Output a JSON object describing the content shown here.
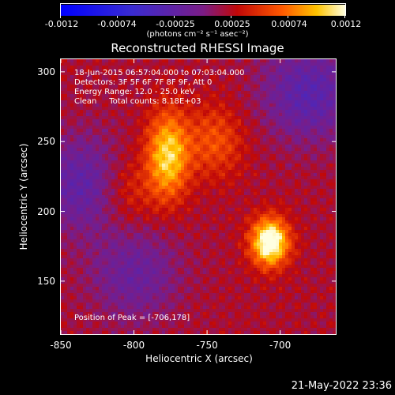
{
  "colorbar": {
    "ticks": [
      "-0.0012",
      "-0.00074",
      "-0.00025",
      "0.00025",
      "0.00074",
      "0.0012"
    ],
    "units": "(photons cm⁻² s⁻¹ asec⁻²)"
  },
  "chart_data": {
    "type": "heatmap",
    "title": "Reconstructed RHESSI Image",
    "xlabel": "Heliocentric X (arcsec)",
    "ylabel": "Heliocentric Y (arcsec)",
    "x_ticks": [
      "-850",
      "-800",
      "-750",
      "-700"
    ],
    "y_ticks": [
      "150",
      "200",
      "250",
      "300"
    ],
    "xlim": [
      -850,
      -662
    ],
    "ylim": [
      112,
      309
    ],
    "clim": [
      -0.0012,
      0.0012
    ],
    "colormap": "blue-purple-red-orange-yellow-white",
    "peak": [
      -706,
      178
    ],
    "annotations": {
      "time": "18-Jun-2015 06:57:04.000 to 07:03:04.000",
      "detectors": "Detectors: 3F 5F 6F 7F 8F 9F, Att 0",
      "energy": "Energy Range: 12.0 - 25.0 keV",
      "clean": "Clean     Total counts: 8.18E+03",
      "peak_label": "Position of Peak = [-706,178]"
    },
    "sources": [
      {
        "x": -777,
        "y": 240,
        "amplitude": 0.00085
      },
      {
        "x": -707,
        "y": 178,
        "amplitude": 0.0012
      },
      {
        "x": -745,
        "y": 250,
        "amplitude": 0.0004
      },
      {
        "x": -805,
        "y": 215,
        "amplitude": 0.0003
      }
    ],
    "negative_regions": [
      {
        "x": -835,
        "y": 220,
        "amplitude": -0.00045
      },
      {
        "x": -680,
        "y": 285,
        "amplitude": -0.0005
      },
      {
        "x": -800,
        "y": 155,
        "amplitude": -0.00035
      }
    ]
  },
  "footer": {
    "timestamp": "21-May-2022 23:36"
  }
}
